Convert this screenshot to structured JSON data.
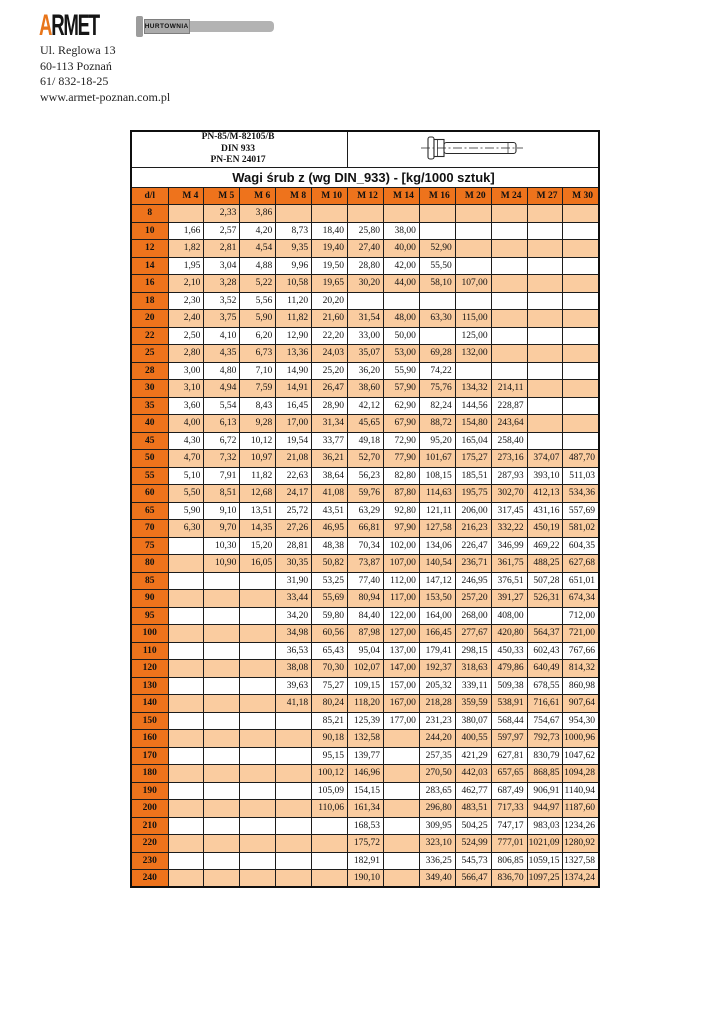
{
  "page": {
    "background": "#ffffff"
  },
  "logo": {
    "brand_initial": "A",
    "brand_rest": "RMET",
    "tagline": "HURTOWNIA",
    "orange": "#E8751A",
    "gray": "#ABABAB"
  },
  "address": {
    "lines": [
      "Ul. Reglowa 13",
      "60-113 Poznań",
      "61/ 832-18-25",
      "www.armet-poznan.com.pl"
    ]
  },
  "table": {
    "standards": [
      "PN-85/M-82105/B",
      "DIN 933",
      "PN-EN 24017"
    ],
    "title": "Wagi śrub z (wg DIN_933) - [kg/1000 sztuk]",
    "columns": [
      "d/l",
      "M 4",
      "M 5",
      "M 6",
      "M 8",
      "M 10",
      "M 12",
      "M 14",
      "M 16",
      "M 20",
      "M 24",
      "M 27",
      "M 30"
    ],
    "colors": {
      "header_bg": "#EE731C",
      "stripe_bg": "#FACCA0",
      "border": "#1c1c1c"
    },
    "rows": [
      {
        "d": "8",
        "v": [
          null,
          "2,33",
          "3,86",
          null,
          null,
          null,
          null,
          null,
          null,
          null,
          null,
          null
        ]
      },
      {
        "d": "10",
        "v": [
          "1,66",
          "2,57",
          "4,20",
          "8,73",
          "18,40",
          "25,80",
          "38,00",
          null,
          null,
          null,
          null,
          null
        ]
      },
      {
        "d": "12",
        "v": [
          "1,82",
          "2,81",
          "4,54",
          "9,35",
          "19,40",
          "27,40",
          "40,00",
          "52,90",
          null,
          null,
          null,
          null
        ]
      },
      {
        "d": "14",
        "v": [
          "1,95",
          "3,04",
          "4,88",
          "9,96",
          "19,50",
          "28,80",
          "42,00",
          "55,50",
          null,
          null,
          null,
          null
        ]
      },
      {
        "d": "16",
        "v": [
          "2,10",
          "3,28",
          "5,22",
          "10,58",
          "19,65",
          "30,20",
          "44,00",
          "58,10",
          "107,00",
          null,
          null,
          null
        ]
      },
      {
        "d": "18",
        "v": [
          "2,30",
          "3,52",
          "5,56",
          "11,20",
          "20,20",
          null,
          null,
          null,
          null,
          null,
          null,
          null
        ]
      },
      {
        "d": "20",
        "v": [
          "2,40",
          "3,75",
          "5,90",
          "11,82",
          "21,60",
          "31,54",
          "48,00",
          "63,30",
          "115,00",
          null,
          null,
          null
        ]
      },
      {
        "d": "22",
        "v": [
          "2,50",
          "4,10",
          "6,20",
          "12,90",
          "22,20",
          "33,00",
          "50,00",
          null,
          "125,00",
          null,
          null,
          null
        ]
      },
      {
        "d": "25",
        "v": [
          "2,80",
          "4,35",
          "6,73",
          "13,36",
          "24,03",
          "35,07",
          "53,00",
          "69,28",
          "132,00",
          null,
          null,
          null
        ]
      },
      {
        "d": "28",
        "v": [
          "3,00",
          "4,80",
          "7,10",
          "14,90",
          "25,20",
          "36,20",
          "55,90",
          "74,22",
          null,
          null,
          null,
          null
        ]
      },
      {
        "d": "30",
        "v": [
          "3,10",
          "4,94",
          "7,59",
          "14,91",
          "26,47",
          "38,60",
          "57,90",
          "75,76",
          "134,32",
          "214,11",
          null,
          null
        ]
      },
      {
        "d": "35",
        "v": [
          "3,60",
          "5,54",
          "8,43",
          "16,45",
          "28,90",
          "42,12",
          "62,90",
          "82,24",
          "144,56",
          "228,87",
          null,
          null
        ]
      },
      {
        "d": "40",
        "v": [
          "4,00",
          "6,13",
          "9,28",
          "17,00",
          "31,34",
          "45,65",
          "67,90",
          "88,72",
          "154,80",
          "243,64",
          null,
          null
        ]
      },
      {
        "d": "45",
        "v": [
          "4,30",
          "6,72",
          "10,12",
          "19,54",
          "33,77",
          "49,18",
          "72,90",
          "95,20",
          "165,04",
          "258,40",
          null,
          null
        ]
      },
      {
        "d": "50",
        "v": [
          "4,70",
          "7,32",
          "10,97",
          "21,08",
          "36,21",
          "52,70",
          "77,90",
          "101,67",
          "175,27",
          "273,16",
          "374,07",
          "487,70"
        ]
      },
      {
        "d": "55",
        "v": [
          "5,10",
          "7,91",
          "11,82",
          "22,63",
          "38,64",
          "56,23",
          "82,80",
          "108,15",
          "185,51",
          "287,93",
          "393,10",
          "511,03"
        ]
      },
      {
        "d": "60",
        "v": [
          "5,50",
          "8,51",
          "12,68",
          "24,17",
          "41,08",
          "59,76",
          "87,80",
          "114,63",
          "195,75",
          "302,70",
          "412,13",
          "534,36"
        ]
      },
      {
        "d": "65",
        "v": [
          "5,90",
          "9,10",
          "13,51",
          "25,72",
          "43,51",
          "63,29",
          "92,80",
          "121,11",
          "206,00",
          "317,45",
          "431,16",
          "557,69"
        ]
      },
      {
        "d": "70",
        "v": [
          "6,30",
          "9,70",
          "14,35",
          "27,26",
          "46,95",
          "66,81",
          "97,90",
          "127,58",
          "216,23",
          "332,22",
          "450,19",
          "581,02"
        ]
      },
      {
        "d": "75",
        "v": [
          null,
          "10,30",
          "15,20",
          "28,81",
          "48,38",
          "70,34",
          "102,00",
          "134,06",
          "226,47",
          "346,99",
          "469,22",
          "604,35"
        ]
      },
      {
        "d": "80",
        "v": [
          null,
          "10,90",
          "16,05",
          "30,35",
          "50,82",
          "73,87",
          "107,00",
          "140,54",
          "236,71",
          "361,75",
          "488,25",
          "627,68"
        ]
      },
      {
        "d": "85",
        "v": [
          null,
          null,
          null,
          "31,90",
          "53,25",
          "77,40",
          "112,00",
          "147,12",
          "246,95",
          "376,51",
          "507,28",
          "651,01"
        ]
      },
      {
        "d": "90",
        "v": [
          null,
          null,
          null,
          "33,44",
          "55,69",
          "80,94",
          "117,00",
          "153,50",
          "257,20",
          "391,27",
          "526,31",
          "674,34"
        ]
      },
      {
        "d": "95",
        "v": [
          null,
          null,
          null,
          "34,20",
          "59,80",
          "84,40",
          "122,00",
          "164,00",
          "268,00",
          "408,00",
          null,
          "712,00"
        ]
      },
      {
        "d": "100",
        "v": [
          null,
          null,
          null,
          "34,98",
          "60,56",
          "87,98",
          "127,00",
          "166,45",
          "277,67",
          "420,80",
          "564,37",
          "721,00"
        ]
      },
      {
        "d": "110",
        "v": [
          null,
          null,
          null,
          "36,53",
          "65,43",
          "95,04",
          "137,00",
          "179,41",
          "298,15",
          "450,33",
          "602,43",
          "767,66"
        ]
      },
      {
        "d": "120",
        "v": [
          null,
          null,
          null,
          "38,08",
          "70,30",
          "102,07",
          "147,00",
          "192,37",
          "318,63",
          "479,86",
          "640,49",
          "814,32"
        ]
      },
      {
        "d": "130",
        "v": [
          null,
          null,
          null,
          "39,63",
          "75,27",
          "109,15",
          "157,00",
          "205,32",
          "339,11",
          "509,38",
          "678,55",
          "860,98"
        ]
      },
      {
        "d": "140",
        "v": [
          null,
          null,
          null,
          "41,18",
          "80,24",
          "118,20",
          "167,00",
          "218,28",
          "359,59",
          "538,91",
          "716,61",
          "907,64"
        ]
      },
      {
        "d": "150",
        "v": [
          null,
          null,
          null,
          null,
          "85,21",
          "125,39",
          "177,00",
          "231,23",
          "380,07",
          "568,44",
          "754,67",
          "954,30"
        ]
      },
      {
        "d": "160",
        "v": [
          null,
          null,
          null,
          null,
          "90,18",
          "132,58",
          null,
          "244,20",
          "400,55",
          "597,97",
          "792,73",
          "1000,96"
        ]
      },
      {
        "d": "170",
        "v": [
          null,
          null,
          null,
          null,
          "95,15",
          "139,77",
          null,
          "257,35",
          "421,29",
          "627,81",
          "830,79",
          "1047,62"
        ]
      },
      {
        "d": "180",
        "v": [
          null,
          null,
          null,
          null,
          "100,12",
          "146,96",
          null,
          "270,50",
          "442,03",
          "657,65",
          "868,85",
          "1094,28"
        ]
      },
      {
        "d": "190",
        "v": [
          null,
          null,
          null,
          null,
          "105,09",
          "154,15",
          null,
          "283,65",
          "462,77",
          "687,49",
          "906,91",
          "1140,94"
        ]
      },
      {
        "d": "200",
        "v": [
          null,
          null,
          null,
          null,
          "110,06",
          "161,34",
          null,
          "296,80",
          "483,51",
          "717,33",
          "944,97",
          "1187,60"
        ]
      },
      {
        "d": "210",
        "v": [
          null,
          null,
          null,
          null,
          null,
          "168,53",
          null,
          "309,95",
          "504,25",
          "747,17",
          "983,03",
          "1234,26"
        ]
      },
      {
        "d": "220",
        "v": [
          null,
          null,
          null,
          null,
          null,
          "175,72",
          null,
          "323,10",
          "524,99",
          "777,01",
          "1021,09",
          "1280,92"
        ]
      },
      {
        "d": "230",
        "v": [
          null,
          null,
          null,
          null,
          null,
          "182,91",
          null,
          "336,25",
          "545,73",
          "806,85",
          "1059,15",
          "1327,58"
        ]
      },
      {
        "d": "240",
        "v": [
          null,
          null,
          null,
          null,
          null,
          "190,10",
          null,
          "349,40",
          "566,47",
          "836,70",
          "1097,25",
          "1374,24"
        ]
      }
    ]
  }
}
